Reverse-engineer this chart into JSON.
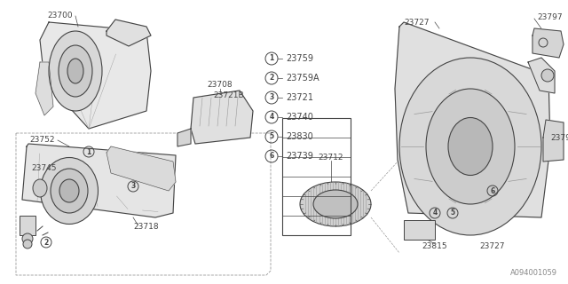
{
  "bg_color": "#f5f5f0",
  "line_color": "#444444",
  "light_line": "#999999",
  "watermark": "A094001059",
  "legend_items": [
    {
      "num": 1,
      "code": "23759"
    },
    {
      "num": 2,
      "code": "23759A"
    },
    {
      "num": 3,
      "code": "23721"
    },
    {
      "num": 4,
      "code": "23740"
    },
    {
      "num": 5,
      "code": "23830"
    },
    {
      "num": 6,
      "code": "23739"
    }
  ],
  "font_size_label": 6.5,
  "font_size_legend": 7.0
}
